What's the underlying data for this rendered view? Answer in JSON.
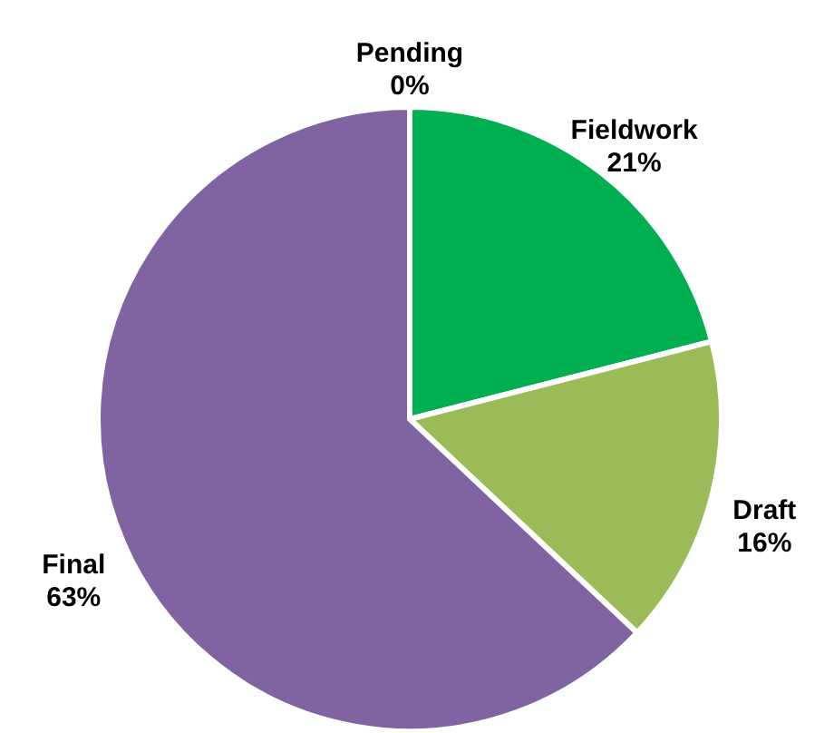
{
  "chart_data": {
    "type": "pie",
    "categories": [
      "Pending",
      "Fieldwork",
      "Draft",
      "Final"
    ],
    "values": [
      0,
      21,
      16,
      63
    ],
    "value_labels": [
      "0%",
      "21%",
      "16%",
      "63%"
    ],
    "colors": [
      "#4f81bd",
      "#00b050",
      "#9bbb59",
      "#8064a2"
    ]
  }
}
